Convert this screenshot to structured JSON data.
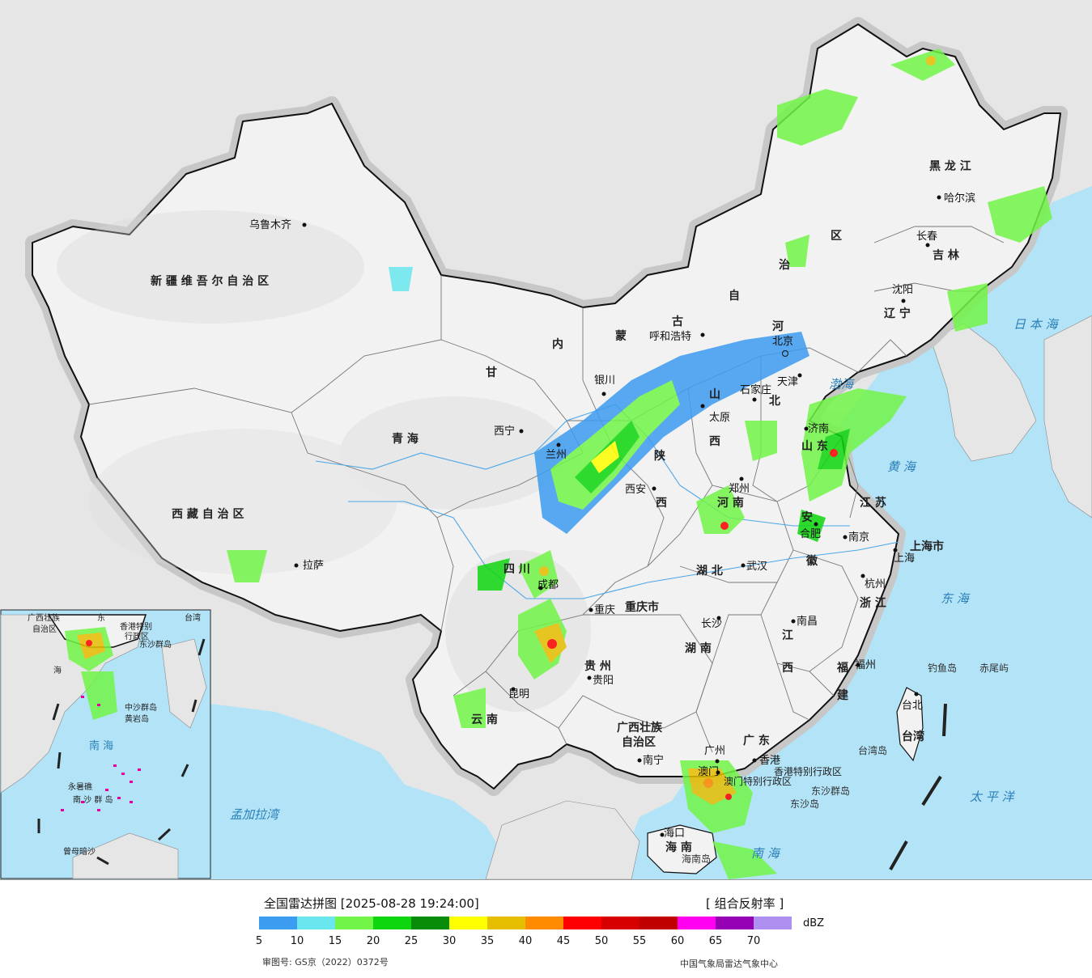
{
  "map": {
    "provinces": [
      {
        "id": "xinjiang",
        "text": "新 疆 维 吾 尔 自 治 区"
      },
      {
        "id": "xizang",
        "text": "西 藏 自 治 区"
      },
      {
        "id": "qinghai",
        "text": "青      海"
      },
      {
        "id": "heilongjiang",
        "text": "黑  龙  江"
      },
      {
        "id": "jilin",
        "text": "吉  林"
      },
      {
        "id": "liaoning",
        "text": "辽  宁"
      },
      {
        "id": "shanxi2",
        "text": "陕"
      },
      {
        "id": "shanxi2b",
        "text": "西"
      },
      {
        "id": "henan",
        "text": "河  南"
      },
      {
        "id": "hubei",
        "text": "湖  北"
      },
      {
        "id": "hunan",
        "text": "湖  南"
      },
      {
        "id": "jiangxi",
        "text": "江"
      },
      {
        "id": "jiangxib",
        "text": "西"
      },
      {
        "id": "fujian",
        "text": "福"
      },
      {
        "id": "fujianb",
        "text": "建"
      },
      {
        "id": "zhejiang",
        "text": "浙  江"
      },
      {
        "id": "jiangsu",
        "text": "江  苏"
      },
      {
        "id": "anhui",
        "text": "安"
      },
      {
        "id": "anhuib",
        "text": "徽"
      },
      {
        "id": "shandong",
        "text": "山  东"
      },
      {
        "id": "sichuan",
        "text": "四   川"
      },
      {
        "id": "guizhou",
        "text": "贵  州"
      },
      {
        "id": "yunnan",
        "text": "云  南"
      },
      {
        "id": "guangxi",
        "text": "广西壮族"
      },
      {
        "id": "guangxib",
        "text": "自治区"
      },
      {
        "id": "guangdong",
        "text": "广  东"
      },
      {
        "id": "hainan",
        "text": "海  南"
      },
      {
        "id": "taiwan",
        "text": "台湾"
      },
      {
        "id": "chongqing",
        "text": "重庆市"
      },
      {
        "id": "shanghai",
        "text": "上海市"
      },
      {
        "id": "hebei",
        "text": "北"
      },
      {
        "id": "gansu",
        "text": "甘"
      },
      {
        "id": "shanxi",
        "text": "山"
      },
      {
        "id": "shanxib",
        "text": "西"
      },
      {
        "id": "neimenggu1",
        "text": "内"
      },
      {
        "id": "neimenggu2",
        "text": "蒙"
      },
      {
        "id": "neimenggu3",
        "text": "古"
      },
      {
        "id": "neimenggu4",
        "text": "自"
      },
      {
        "id": "neimenggu5",
        "text": "治"
      },
      {
        "id": "neimenggu6",
        "text": "区"
      },
      {
        "id": "hebeia",
        "text": "河"
      },
      {
        "id": "hk",
        "text": "香港特别行政区"
      },
      {
        "id": "macau",
        "text": "澳门特别行政区"
      }
    ],
    "cities": [
      {
        "id": "urumqi",
        "text": "乌鲁木齐"
      },
      {
        "id": "lhasa",
        "text": "拉萨"
      },
      {
        "id": "xining",
        "text": "西宁"
      },
      {
        "id": "lanzhou",
        "text": "兰州"
      },
      {
        "id": "yinchuan",
        "text": "银川"
      },
      {
        "id": "hohhot",
        "text": "呼和浩特"
      },
      {
        "id": "beijing",
        "text": "北京"
      },
      {
        "id": "tianjin",
        "text": "天津"
      },
      {
        "id": "shijiazhuang",
        "text": "石家庄"
      },
      {
        "id": "taiyuan",
        "text": "太原"
      },
      {
        "id": "xian",
        "text": "西安"
      },
      {
        "id": "zhengzhou",
        "text": "郑州"
      },
      {
        "id": "jinan",
        "text": "济南"
      },
      {
        "id": "hefei",
        "text": "合肥"
      },
      {
        "id": "nanjing",
        "text": "南京"
      },
      {
        "id": "shanghaic",
        "text": "上海"
      },
      {
        "id": "hangzhou",
        "text": "杭州"
      },
      {
        "id": "wuhan",
        "text": "武汉"
      },
      {
        "id": "chengdu",
        "text": "成都"
      },
      {
        "id": "chongqingc",
        "text": "重庆"
      },
      {
        "id": "changsha",
        "text": "长沙"
      },
      {
        "id": "nanchang",
        "text": "南昌"
      },
      {
        "id": "fuzhou",
        "text": "福州"
      },
      {
        "id": "guiyang",
        "text": "贵阳"
      },
      {
        "id": "kunming",
        "text": "昆明"
      },
      {
        "id": "nanning",
        "text": "南宁"
      },
      {
        "id": "guangzhou",
        "text": "广州"
      },
      {
        "id": "xianggang",
        "text": "香港"
      },
      {
        "id": "aomen",
        "text": "澳门"
      },
      {
        "id": "haikou",
        "text": "海口"
      },
      {
        "id": "taibei",
        "text": "台北"
      },
      {
        "id": "harbin",
        "text": "哈尔滨"
      },
      {
        "id": "changchun",
        "text": "长春"
      },
      {
        "id": "shenyang",
        "text": "沈阳"
      }
    ],
    "seas": [
      {
        "id": "riben",
        "text": "日 本 海"
      },
      {
        "id": "bohai",
        "text": "渤海"
      },
      {
        "id": "huanghai",
        "text": "黄 海"
      },
      {
        "id": "donghai",
        "text": "东 海"
      },
      {
        "id": "taiping",
        "text": "太  平  洋"
      },
      {
        "id": "nanhai",
        "text": "南      海"
      },
      {
        "id": "mengjiala",
        "text": "孟加拉湾"
      }
    ],
    "islands": [
      {
        "id": "diaoyu",
        "text": "钓鱼岛"
      },
      {
        "id": "chiwei",
        "text": "赤尾屿"
      },
      {
        "id": "taiwandao",
        "text": "台湾岛"
      },
      {
        "id": "dongsha",
        "text": "东沙群岛"
      },
      {
        "id": "dongshadao",
        "text": "东沙岛"
      },
      {
        "id": "hainandao",
        "text": "海南岛"
      }
    ],
    "inset": {
      "labels": [
        {
          "id": "i_guangxi",
          "text": "广西壮族"
        },
        {
          "id": "i_zizhiqu",
          "text": "自治区"
        },
        {
          "id": "i_dong",
          "text": "东"
        },
        {
          "id": "i_taiwan",
          "text": "台湾"
        },
        {
          "id": "i_hk",
          "text": "香港特别"
        },
        {
          "id": "i_xzq",
          "text": "行政区"
        },
        {
          "id": "i_dongsha",
          "text": "东沙群岛"
        },
        {
          "id": "i_hai",
          "text": "海"
        },
        {
          "id": "i_zhongsha",
          "text": "中沙群岛"
        },
        {
          "id": "i_huangyan",
          "text": "黄岩岛"
        },
        {
          "id": "i_nanhai",
          "text": "南      海"
        },
        {
          "id": "i_yongshu",
          "text": "永暑礁"
        },
        {
          "id": "i_nansha",
          "text": "南 沙 群 岛"
        },
        {
          "id": "i_zengmu",
          "text": "曾母暗沙"
        }
      ]
    }
  },
  "legend": {
    "title": "全国雷达拼图 [2025-08-28 19:24:00]",
    "product": "[ 组合反射率 ]",
    "unit": "dBZ",
    "colors": [
      "#3c9cf0",
      "#6ae6ee",
      "#72f548",
      "#0ed60e",
      "#088c08",
      "#ffff00",
      "#e6be00",
      "#ff8c00",
      "#ff0000",
      "#d60000",
      "#c00000",
      "#ff00f0",
      "#9600b4",
      "#ad90f0"
    ],
    "ticks": [
      "5",
      "10",
      "15",
      "20",
      "25",
      "30",
      "35",
      "40",
      "45",
      "50",
      "55",
      "60",
      "65",
      "70"
    ],
    "approval": "审图号: GS京（2022）0372号",
    "source": "中国气象局雷达气象中心"
  }
}
